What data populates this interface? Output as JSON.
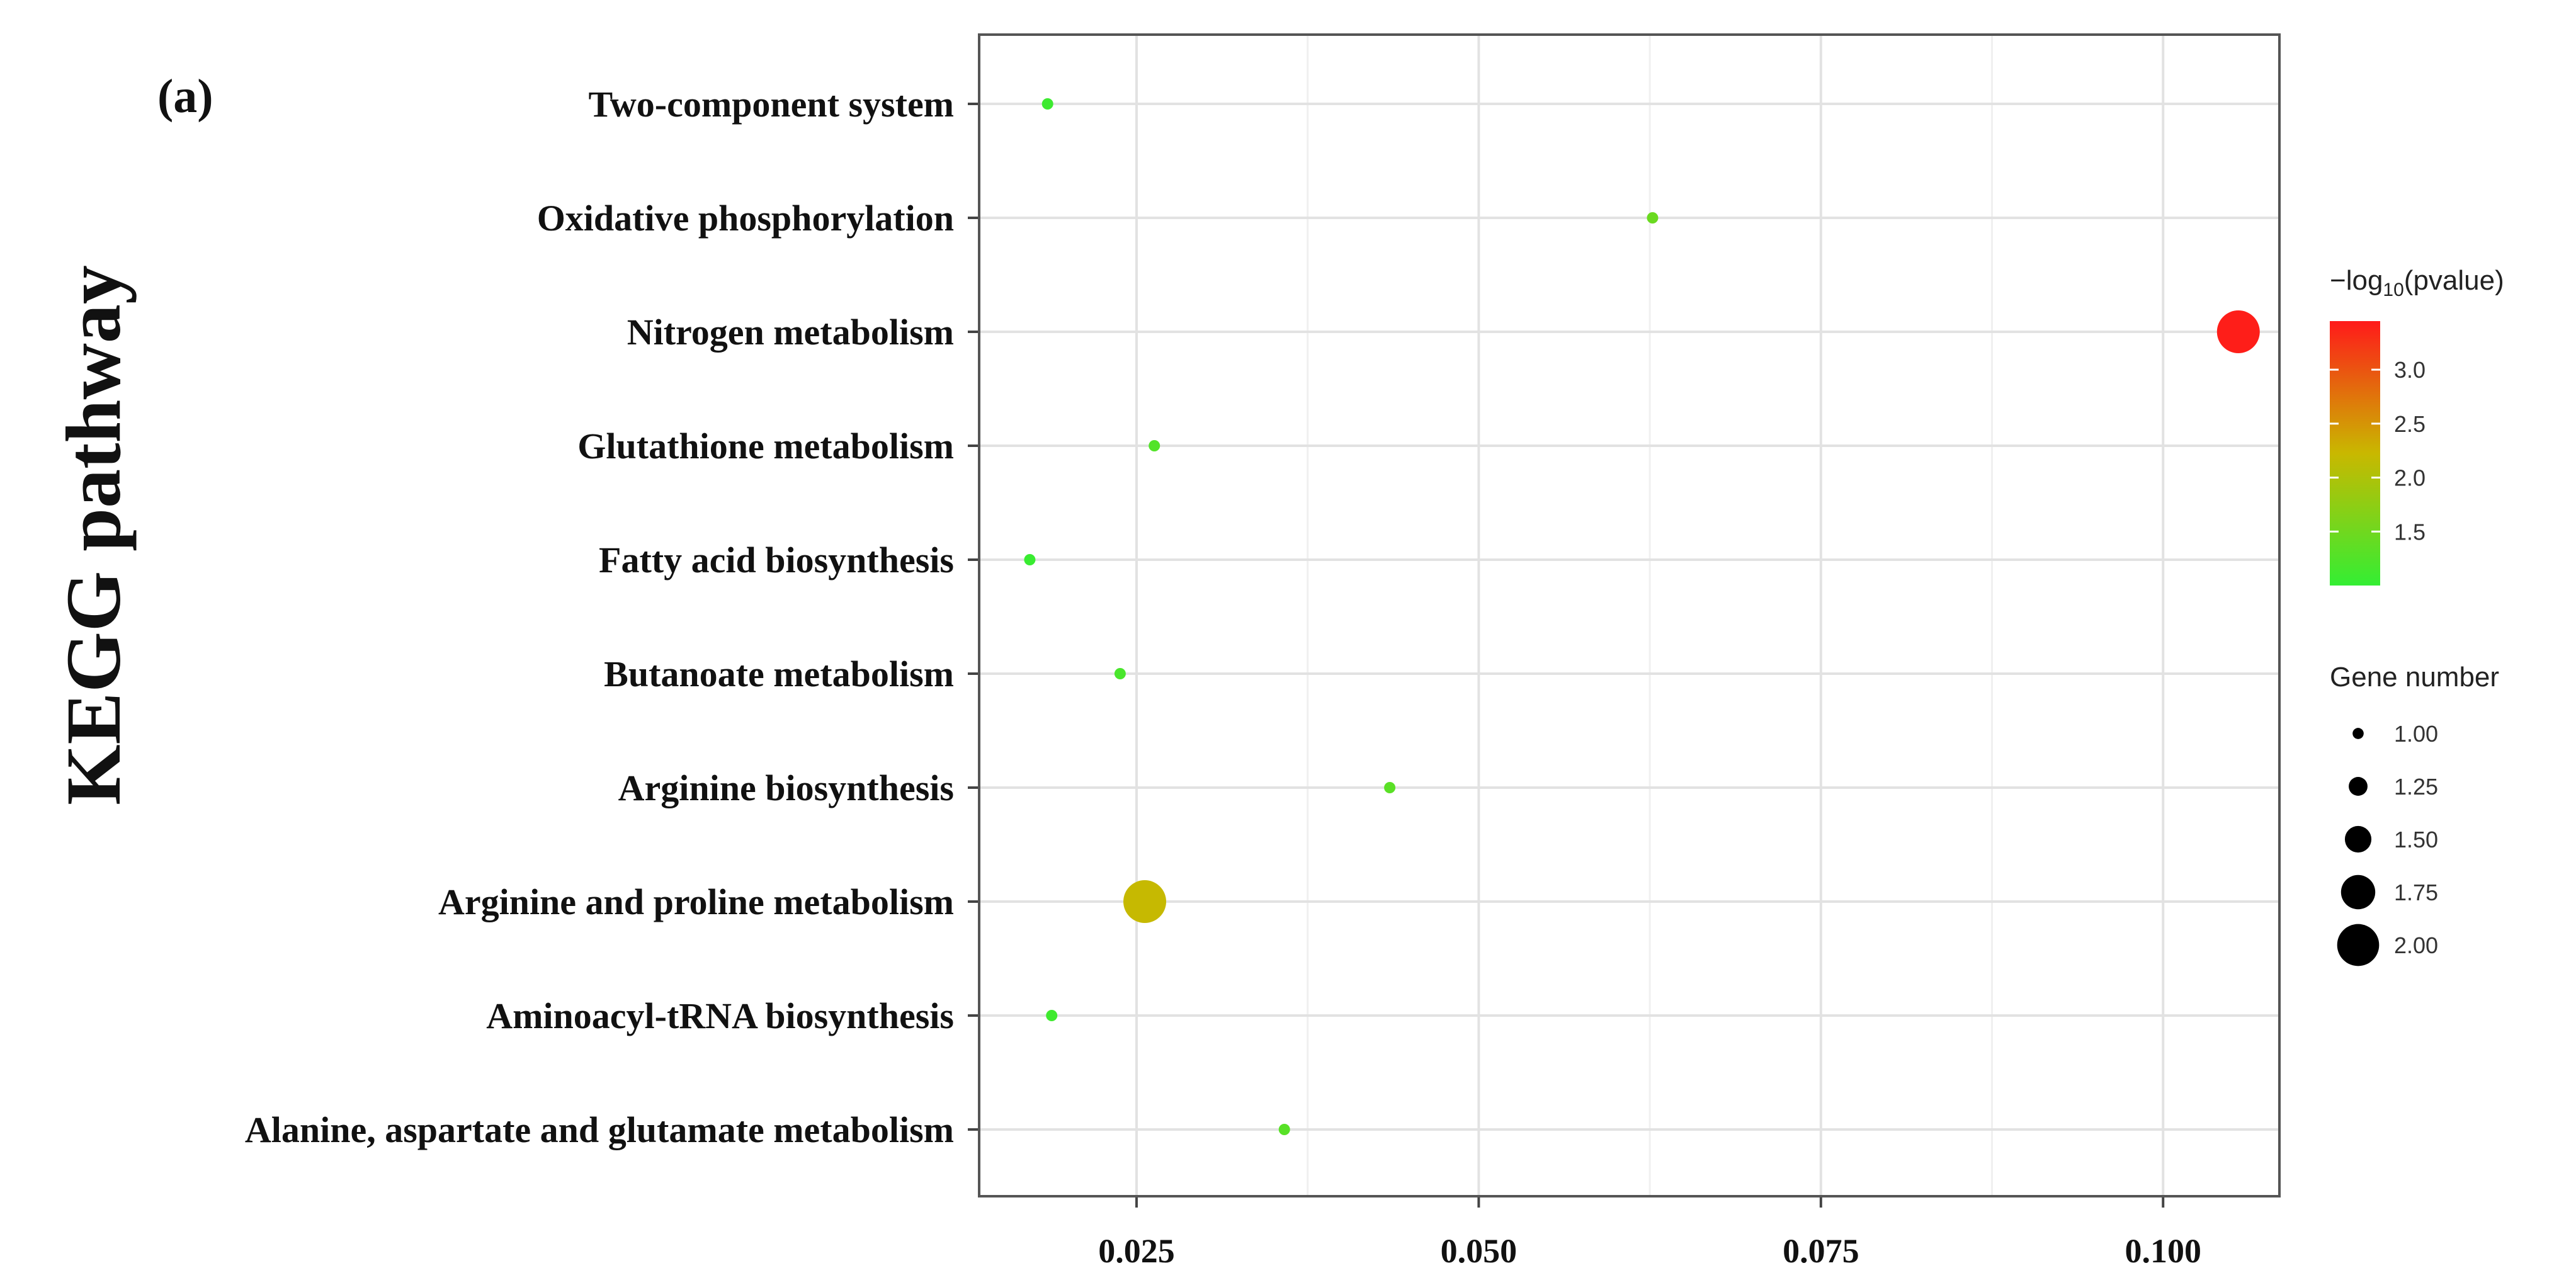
{
  "panel_label": "(a)",
  "chart_data": {
    "type": "scatter",
    "title": "",
    "xlabel": "",
    "ylabel": "KEGG pathway",
    "xlim": [
      0.0135,
      0.1085
    ],
    "xticks": [
      0.025,
      0.05,
      0.075,
      0.1
    ],
    "xtick_labels": [
      "0.025",
      "0.050",
      "0.075",
      "0.100"
    ],
    "grid": true,
    "categories": [
      "Two-component system",
      "Oxidative phosphorylation",
      "Nitrogen metabolism",
      "Glutathione metabolism",
      "Fatty acid biosynthesis",
      "Butanoate metabolism",
      "Arginine biosynthesis",
      "Arginine and proline metabolism",
      "Aminoacyl-tRNA biosynthesis",
      "Alanine, aspartate and glutamate metabolism"
    ],
    "points": [
      {
        "category": "Two-component system",
        "x": 0.0185,
        "pvalue_log": 1.08,
        "gene_number": 1
      },
      {
        "category": "Oxidative phosphorylation",
        "x": 0.0627,
        "pvalue_log": 1.45,
        "gene_number": 1
      },
      {
        "category": "Nitrogen metabolism",
        "x": 0.1055,
        "pvalue_log": 3.42,
        "gene_number": 2
      },
      {
        "category": "Glutathione metabolism",
        "x": 0.0263,
        "pvalue_log": 1.25,
        "gene_number": 1
      },
      {
        "category": "Fatty acid biosynthesis",
        "x": 0.0172,
        "pvalue_log": 1.05,
        "gene_number": 1
      },
      {
        "category": "Butanoate metabolism",
        "x": 0.0238,
        "pvalue_log": 1.18,
        "gene_number": 1
      },
      {
        "category": "Arginine biosynthesis",
        "x": 0.0435,
        "pvalue_log": 1.32,
        "gene_number": 1
      },
      {
        "category": "Arginine and proline metabolism",
        "x": 0.0256,
        "pvalue_log": 2.2,
        "gene_number": 2
      },
      {
        "category": "Aminoacyl-tRNA biosynthesis",
        "x": 0.0188,
        "pvalue_log": 1.1,
        "gene_number": 1
      },
      {
        "category": "Alanine, aspartate and glutamate metabolism",
        "x": 0.0358,
        "pvalue_log": 1.3,
        "gene_number": 1
      }
    ],
    "color_legend": {
      "title_prefix": "−log",
      "title_sub": "10",
      "title_suffix": "(pvalue)",
      "range": [
        1.0,
        3.45
      ],
      "ticks": [
        1.5,
        2.0,
        2.5,
        3.0
      ],
      "tick_labels": [
        "1.5",
        "2.0",
        "2.5",
        "3.0"
      ],
      "colors": [
        "#33ee33",
        "#c9b800",
        "#ff1a1a"
      ]
    },
    "size_legend": {
      "title": "Gene number",
      "values": [
        1.0,
        1.25,
        1.5,
        1.75,
        2.0
      ],
      "labels": [
        "1.00",
        "1.25",
        "1.50",
        "1.75",
        "2.00"
      ]
    },
    "legend_position": "right"
  }
}
